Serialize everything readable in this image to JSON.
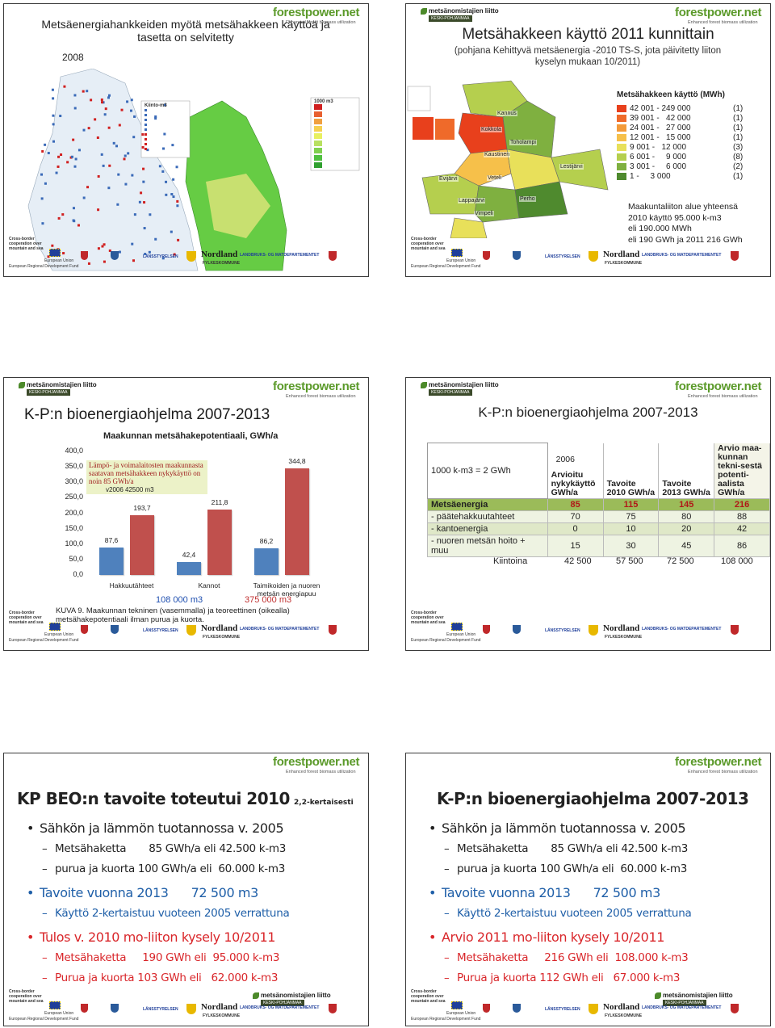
{
  "branding": {
    "org": "metsänomistajien liitto",
    "region": "KESKI-POHJANMAA",
    "site": "forestpower.net",
    "tagline": "Enhanced forest biomass utilization",
    "cooperation": "Cross-border cooperation over mountain and sea",
    "eu": "European Union",
    "fund": "European Regional Development Fund",
    "nordland": "Nordland",
    "fylke": "FYLKESKOMMUNE",
    "ministry": "LANDBRUKS- OG MATDEPARTEMENTET",
    "lansstyrelsen": "LÄNSSTYRELSEN"
  },
  "slides": [
    {
      "title": "Metsäenergiahankkeiden myötä metsähakkeen käyttöä ja tasetta on selvitetty",
      "year": "2008",
      "legend_left": "Kiinto-m3",
      "legend_right": "1000 m3"
    },
    {
      "title": "Metsähakkeen käyttö 2011 kunnittain",
      "subtitle": "(pohjana Kehittyvä metsäenergia -2010 TS-S, jota päivitetty liiton kyselyn mukaan 10/2011)",
      "legend_title": "Metsähakkeen käyttö (MWh)",
      "legend": [
        {
          "range": "42 001 - 249 000",
          "count": "(1)",
          "color": "#e8401c"
        },
        {
          "range": "39 001 -   42 000",
          "count": "(1)",
          "color": "#ef6a2a"
        },
        {
          "range": "24 001 -   27 000",
          "count": "(1)",
          "color": "#f39a3a"
        },
        {
          "range": "12 001 -   15 000",
          "count": "(1)",
          "color": "#f6c04a"
        },
        {
          "range": "9 001 -   12 000",
          "count": "(3)",
          "color": "#e8e05a"
        },
        {
          "range": "6 001 -     9 000",
          "count": "(8)",
          "color": "#b5cf4e"
        },
        {
          "range": "3 001 -     6 000",
          "count": "(2)",
          "color": "#7fb040"
        },
        {
          "range": "1 -     3 000",
          "count": "(1)",
          "color": "#4f8a2e"
        }
      ],
      "places": [
        "Kannus",
        "Kokkola",
        "Toholampi",
        "Kaustinen",
        "Lestijärvi",
        "Evijärvi",
        "Veteli",
        "Perho",
        "Lappajärvi",
        "Vimpeli"
      ],
      "note": [
        "Maakuntaliiton alue yhteensä",
        "2010 käyttö 95.000 k-m3",
        "eli 190.000 MWh",
        "eli 190 GWh ja 2011 216 GWh"
      ]
    },
    {
      "title": "K-P:n bioenergiaohjelma 2007-2013",
      "note": "Lämpö- ja voimalaitosten maakunnasta saatavan metsähakkeen nykykäyttö on noin 85 GWh/a",
      "note2": "v2006  42500 m3",
      "left_total": "108 000 m3",
      "right_total": "375 000 m3",
      "caption": "KUVA 9. Maakunnan tekninen (vasemmalla) ja teoreettinen (oikealla) metsähakepotentiaali ilman purua ja kuorta."
    },
    {
      "title": "K-P:n bioenergiaohjelma 2007-2013",
      "table": {
        "unit": "1000 k-m3 = 2 GWh",
        "year": "2006",
        "headers": [
          "Arvioitu nykykäyttö GWh/a",
          "Tavoite 2010 GWh/a",
          "Tavoite 2013 GWh/a",
          "Arvio maa-kunnan tekni-sestä potenti-aalista GWh/a"
        ],
        "rows": [
          [
            "Metsäenergia",
            "85",
            "115",
            "145",
            "216"
          ],
          [
            "- päätehakkuutahteet",
            "70",
            "75",
            "80",
            "88"
          ],
          [
            "- kantoenergia",
            "0",
            "10",
            "20",
            "42"
          ],
          [
            "- nuoren metsän hoito + muu",
            "15",
            "30",
            "45",
            "86"
          ]
        ],
        "solid_label": "Kiintoina",
        "solid_values": [
          "42 500",
          "57 500",
          "72 500",
          "108 000"
        ]
      }
    },
    {
      "title": "KP BEO:n tavoite toteutui 2010",
      "title_note": "2,2-kertaisesti",
      "items": [
        {
          "text": "Sähkön ja lämmön tuotannossa v. 2005",
          "level": 1,
          "color": "#222222"
        },
        {
          "text": "Metsähaketta       85 GWh/a eli 42.500 k-m3",
          "level": 2,
          "color": "#222222"
        },
        {
          "text": "purua ja kuorta 100 GWh/a eli  60.000 k-m3",
          "level": 2,
          "color": "#222222"
        },
        {
          "text": "Tavoite vuonna 2013      72 500 m3",
          "level": 1,
          "color": "#1f5fa8"
        },
        {
          "text": "Käyttö 2-kertaistuu vuoteen 2005 verrattuna",
          "level": 2,
          "color": "#1f5fa8"
        },
        {
          "text": "Tulos v. 2010 mo-liiton kysely 10/2011",
          "level": 1,
          "color": "#d9262a"
        },
        {
          "text": "Metsähaketta     190 GWh eli  95.000 k-m3",
          "level": 2,
          "color": "#d9262a"
        },
        {
          "text": "Purua ja kuorta 103 GWh eli   62.000 k-m3",
          "level": 2,
          "color": "#d9262a"
        }
      ]
    },
    {
      "title": "K-P:n bioenergiaohjelma 2007-2013",
      "items": [
        {
          "text": "Sähkön ja lämmön tuotannossa v. 2005",
          "level": 1,
          "color": "#222222"
        },
        {
          "text": "Metsähaketta       85 GWh/a eli 42.500 k-m3",
          "level": 2,
          "color": "#222222"
        },
        {
          "text": "purua ja kuorta 100 GWh/a eli  60.000 k-m3",
          "level": 2,
          "color": "#222222"
        },
        {
          "text": "Tavoite vuonna 2013      72 500 m3",
          "level": 1,
          "color": "#1f5fa8"
        },
        {
          "text": "Käyttö 2-kertaistuu vuoteen 2005 verrattuna",
          "level": 2,
          "color": "#1f5fa8"
        },
        {
          "text": "Arvio 2011 mo-liiton kysely 10/2011",
          "level": 1,
          "color": "#d9262a"
        },
        {
          "text": "Metsähaketta     216 GWh eli  108.000 k-m3",
          "level": 2,
          "color": "#d9262a"
        },
        {
          "text": "Purua ja kuorta 112 GWh eli   67.000 k-m3",
          "level": 2,
          "color": "#d9262a"
        }
      ]
    }
  ],
  "chart_data": {
    "type": "bar",
    "title": "Maakunnan metsähakepotentiaali, GWh/a",
    "categories": [
      "Hakkuutähteet",
      "Kannot",
      "Taimikoiden ja nuoren metsän energiapuu"
    ],
    "series": [
      {
        "color": "#4f81bd",
        "values": [
          87.6,
          42.4,
          86.2
        ],
        "value_labels": [
          "87,6",
          "42,4",
          "86,2"
        ]
      },
      {
        "color": "#c0504d",
        "values": [
          193.7,
          211.8,
          344.8
        ],
        "value_labels": [
          "193,7",
          "211,8",
          "344,8"
        ]
      }
    ],
    "ylim": [
      0,
      400
    ],
    "yticks": [
      {
        "value": 0,
        "label": "0,0"
      },
      {
        "value": 50,
        "label": "50,0"
      },
      {
        "value": 100,
        "label": "100,0"
      },
      {
        "value": 150,
        "label": "150,0"
      },
      {
        "value": 200,
        "label": "200,0"
      },
      {
        "value": 250,
        "label": "250,0"
      },
      {
        "value": 300,
        "label": "300,0"
      },
      {
        "value": 350,
        "label": "350,0"
      },
      {
        "value": 400,
        "label": "400,0"
      }
    ],
    "grid": false
  }
}
